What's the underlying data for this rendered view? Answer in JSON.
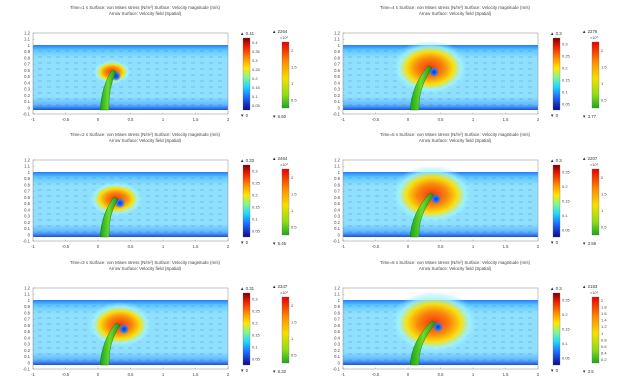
{
  "chart_data": [
    {
      "type": "heatmap",
      "title_line1": "Time=1 s   Surface: von Mises stress (N/m²)  Surface: Velocity magnitude (m/s)",
      "title_line2": "Arrow Surface: Velocity field (Spatial)",
      "x_ticks": [
        "-1",
        "-0.5",
        "0",
        "0.5",
        "1",
        "1.5",
        "2"
      ],
      "y_ticks": [
        "1.2",
        "1.1",
        "1",
        "0.9",
        "0.8",
        "0.7",
        "0.6",
        "0.5",
        "0.4",
        "0.3",
        "0.2",
        "0.1",
        "0",
        "-0.1"
      ],
      "velocity_colorbar": {
        "max_label": "0.41",
        "min_label": "0",
        "ticks": [
          "0.4",
          "0.35",
          "0.3",
          "0.25",
          "0.2",
          "0.15",
          "0.1",
          "0.05"
        ]
      },
      "stress_colorbar": {
        "max_label": "2264",
        "exponent": "×10³",
        "min_label": "6.50",
        "ticks": [
          "2",
          "1.5",
          "1",
          "0.5"
        ]
      }
    },
    {
      "type": "heatmap",
      "title_line1": "Time=2 s   Surface: von Mises stress (N/m²)  Surface: Velocity magnitude (m/s)",
      "title_line2": "Arrow Surface: Velocity field (Spatial)",
      "x_ticks": [
        "-1",
        "-0.5",
        "0",
        "0.5",
        "1",
        "1.5",
        "2"
      ],
      "y_ticks": [
        "1.2",
        "1.1",
        "1",
        "0.9",
        "0.8",
        "0.7",
        "0.6",
        "0.5",
        "0.4",
        "0.3",
        "0.2",
        "0.1",
        "0",
        "-0.1"
      ],
      "velocity_colorbar": {
        "max_label": "0.33",
        "min_label": "0",
        "ticks": [
          "0.3",
          "0.25",
          "0.2",
          "0.15",
          "0.1",
          "0.05"
        ]
      },
      "stress_colorbar": {
        "max_label": "2464",
        "exponent": "×10³",
        "min_label": "5.45",
        "ticks": [
          "2",
          "1.5",
          "1",
          "0.5"
        ]
      }
    },
    {
      "type": "heatmap",
      "title_line1": "Time=3 s   Surface: von Mises stress (N/m²)  Surface: Velocity magnitude (m/s)",
      "title_line2": "Arrow Surface: Velocity field (Spatial)",
      "x_ticks": [
        "-1",
        "-0.5",
        "0",
        "0.5",
        "1",
        "1.5",
        "2"
      ],
      "y_ticks": [
        "1.2",
        "1.1",
        "1",
        "0.9",
        "0.8",
        "0.7",
        "0.6",
        "0.5",
        "0.4",
        "0.3",
        "0.2",
        "0.1",
        "0",
        "-0.1"
      ],
      "velocity_colorbar": {
        "max_label": "0.31",
        "min_label": "0",
        "ticks": [
          "0.3",
          "0.25",
          "0.2",
          "0.15",
          "0.1",
          "0.05"
        ]
      },
      "stress_colorbar": {
        "max_label": "2347",
        "exponent": "×10³",
        "min_label": "6.32",
        "ticks": [
          "2",
          "1.5",
          "1",
          "0.5"
        ]
      }
    },
    {
      "type": "heatmap",
      "title_line1": "Time=4 s   Surface: von Mises stress (N/m²)  Surface: Velocity magnitude (m/s)",
      "title_line2": "Arrow Surface: Velocity field (Spatial)",
      "x_ticks": [
        "-1",
        "-0.5",
        "0",
        "0.5",
        "1",
        "1.5",
        "2"
      ],
      "y_ticks": [
        "1.2",
        "1.1",
        "1",
        "0.9",
        "0.8",
        "0.7",
        "0.6",
        "0.5",
        "0.4",
        "0.3",
        "0.2",
        "0.1",
        "0",
        "-0.1"
      ],
      "velocity_colorbar": {
        "max_label": "0.3",
        "min_label": "0",
        "ticks": [
          "0.3",
          "0.25",
          "0.2",
          "0.15",
          "0.1",
          "0.05"
        ]
      },
      "stress_colorbar": {
        "max_label": "2276",
        "exponent": "×10³",
        "min_label": "3.77",
        "ticks": [
          "2",
          "1.5",
          "1",
          "0.5"
        ]
      }
    },
    {
      "type": "heatmap",
      "title_line1": "Time=5 s   Surface: von Mises stress (N/m²)  Surface: Velocity magnitude (m/s)",
      "title_line2": "Arrow Surface: Velocity field (Spatial)",
      "x_ticks": [
        "-1",
        "-0.5",
        "0",
        "0.5",
        "1",
        "1.5",
        "2"
      ],
      "y_ticks": [
        "1.2",
        "1.1",
        "1",
        "0.9",
        "0.8",
        "0.7",
        "0.6",
        "0.5",
        "0.4",
        "0.3",
        "0.2",
        "0.1",
        "0",
        "-0.1"
      ],
      "velocity_colorbar": {
        "max_label": "0.3",
        "min_label": "0",
        "ticks": [
          "0.25",
          "0.2",
          "0.15",
          "0.1",
          "0.05"
        ]
      },
      "stress_colorbar": {
        "max_label": "2207",
        "exponent": "×10³",
        "min_label": "3.59",
        "ticks": [
          "2",
          "1.5",
          "1",
          "0.5"
        ]
      }
    },
    {
      "type": "heatmap",
      "title_line1": "Time=6 s   Surface: von Mises stress (N/m²)  Surface: Velocity magnitude (m/s)",
      "title_line2": "Arrow Surface: Velocity field (Spatial)",
      "x_ticks": [
        "-1",
        "-0.5",
        "0",
        "0.5",
        "1",
        "1.5",
        "2"
      ],
      "y_ticks": [
        "1.2",
        "1.1",
        "1",
        "0.9",
        "0.8",
        "0.7",
        "0.6",
        "0.5",
        "0.4",
        "0.3",
        "0.2",
        "0.1",
        "0",
        "-0.1"
      ],
      "velocity_colorbar": {
        "max_label": "0.3",
        "min_label": "0",
        "ticks": [
          "0.25",
          "0.2",
          "0.15",
          "0.1",
          "0.05"
        ]
      },
      "stress_colorbar": {
        "max_label": "2183",
        "exponent": "×10³",
        "min_label": "3.5",
        "ticks": [
          "2",
          "1.8",
          "1.6",
          "1.4",
          "1.2",
          "1",
          "0.8",
          "0.6",
          "0.4",
          "0.2"
        ]
      }
    }
  ]
}
